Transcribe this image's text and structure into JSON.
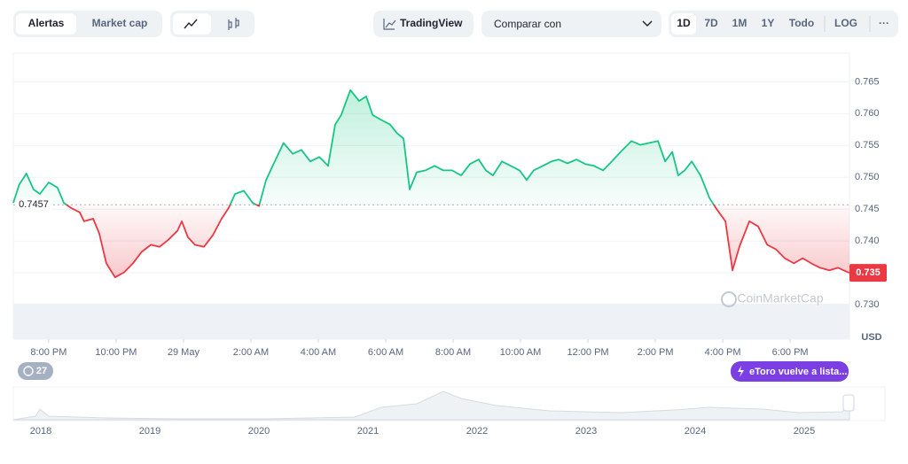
{
  "toolbar": {
    "view_tabs": [
      "Alertas",
      "Market cap"
    ],
    "tradingview": "TradingView",
    "compare": "Comparar con",
    "ranges": [
      "1D",
      "7D",
      "1M",
      "1Y",
      "Todo",
      "LOG"
    ],
    "more": "···"
  },
  "chart_data": {
    "type": "line",
    "x": [
      -1.05,
      -0.87,
      -0.66,
      -0.45,
      -0.26,
      0,
      0.26,
      0.45,
      0.66,
      0.92,
      1.05,
      1.32,
      1.5,
      1.71,
      1.97,
      2.24,
      2.5,
      2.76,
      3.03,
      3.29,
      3.55,
      3.82,
      3.95,
      4.13,
      4.34,
      4.61,
      4.87,
      5.13,
      5.34,
      5.53,
      5.79,
      6.05,
      6.24,
      6.45,
      6.71,
      6.97,
      7.24,
      7.5,
      7.76,
      8.03,
      8.29,
      8.5,
      8.68,
      8.95,
      9.21,
      9.42,
      9.61,
      9.87,
      10.13,
      10.34,
      10.53,
      10.71,
      10.92,
      11.18,
      11.45,
      11.71,
      11.97,
      12.24,
      12.5,
      12.76,
      12.97,
      13.18,
      13.45,
      13.71,
      13.97,
      14.18,
      14.39,
      14.66,
      14.92,
      15.13,
      15.39,
      15.66,
      15.92,
      16.18,
      16.45,
      16.71,
      16.97,
      17.29,
      17.55,
      17.82,
      18.08,
      18.29,
      18.5,
      18.68,
      18.87,
      19.08,
      19.34,
      19.61,
      19.82,
      20.08,
      20.29,
      20.5,
      20.79,
      21.05,
      21.32,
      21.58,
      21.84,
      22.11,
      22.37,
      22.63,
      22.89,
      23.16,
      23.42,
      23.76
    ],
    "series": [
      {
        "name": "USD",
        "color_up": "#16c784",
        "color_down": "#ea3943",
        "values": [
          0.746,
          0.7489,
          0.7506,
          0.7481,
          0.7474,
          0.7492,
          0.7484,
          0.746,
          0.7452,
          0.7445,
          0.7431,
          0.7435,
          0.7412,
          0.7365,
          0.7343,
          0.7351,
          0.7365,
          0.7383,
          0.7394,
          0.7391,
          0.7402,
          0.7416,
          0.7431,
          0.7406,
          0.7394,
          0.7391,
          0.7409,
          0.7435,
          0.7452,
          0.7474,
          0.7479,
          0.746,
          0.7455,
          0.7496,
          0.7525,
          0.7554,
          0.7537,
          0.7543,
          0.7525,
          0.7532,
          0.7518,
          0.7583,
          0.7598,
          0.7637,
          0.762,
          0.7627,
          0.7598,
          0.759,
          0.7583,
          0.7569,
          0.7561,
          0.7481,
          0.7508,
          0.7511,
          0.7518,
          0.7511,
          0.7511,
          0.7503,
          0.7521,
          0.7528,
          0.7511,
          0.7503,
          0.7525,
          0.7518,
          0.7511,
          0.7496,
          0.7511,
          0.7518,
          0.7525,
          0.7528,
          0.7522,
          0.7528,
          0.7521,
          0.7518,
          0.7511,
          0.7525,
          0.754,
          0.7557,
          0.7551,
          0.7554,
          0.7557,
          0.7525,
          0.754,
          0.7503,
          0.7511,
          0.7525,
          0.7503,
          0.7467,
          0.745,
          0.7431,
          0.7354,
          0.7392,
          0.7431,
          0.7423,
          0.7394,
          0.7387,
          0.7373,
          0.7365,
          0.7373,
          0.7365,
          0.7358,
          0.7354,
          0.7358,
          0.735
        ]
      }
    ],
    "baseline": 0.7457,
    "current_price": 0.735,
    "currency": "USD",
    "watermark": "CoinMarketCap",
    "xlim": [
      -1.05,
      23.76
    ],
    "xticks": [
      {
        "value": 0,
        "label": "8:00 PM"
      },
      {
        "value": 2,
        "label": "10:00 PM"
      },
      {
        "value": 4,
        "label": "29 May"
      },
      {
        "value": 6,
        "label": "2:00 AM"
      },
      {
        "value": 8,
        "label": "4:00 AM"
      },
      {
        "value": 10,
        "label": "6:00 AM"
      },
      {
        "value": 12,
        "label": "8:00 AM"
      },
      {
        "value": 14,
        "label": "10:00 AM"
      },
      {
        "value": 16,
        "label": "12:00 PM"
      },
      {
        "value": 18,
        "label": "2:00 PM"
      },
      {
        "value": 20,
        "label": "4:00 PM"
      },
      {
        "value": 22,
        "label": "6:00 PM"
      }
    ],
    "ylim": [
      0.7246,
      0.7695
    ],
    "yticks": [
      {
        "value": 0.73,
        "label": "0.730"
      },
      0.735,
      {
        "value": 0.74,
        "label": "0.740"
      },
      0.745,
      {
        "value": 0.75,
        "label": "0.750"
      },
      0.755,
      {
        "value": 0.76,
        "label": "0.760"
      },
      0.765
    ],
    "grid": true
  },
  "navigator": {
    "years": [
      "2018",
      "2019",
      "2020",
      "2021",
      "2022",
      "2023",
      "2024",
      "2025"
    ]
  },
  "badges": {
    "count": "27",
    "news": "eToro vuelve a lista..."
  }
}
